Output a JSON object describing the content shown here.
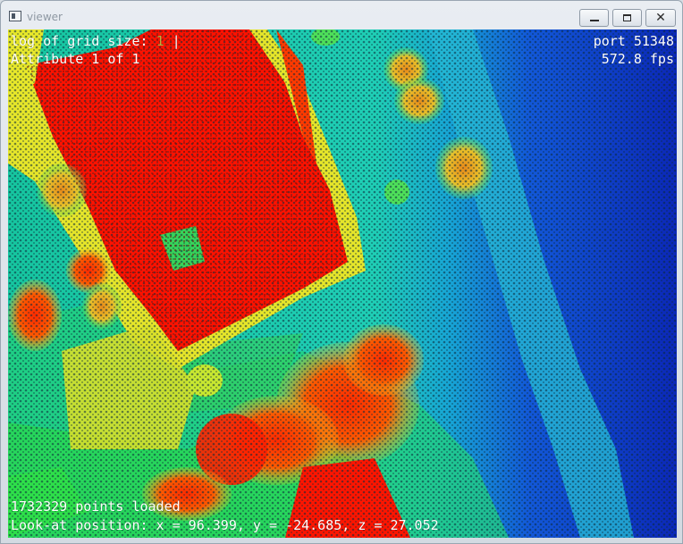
{
  "window": {
    "title": "viewer",
    "controls": {
      "minimize": "minimize",
      "maximize": "maximize",
      "close": "close"
    }
  },
  "hud": {
    "grid_label": "log of grid size: ",
    "grid_value": "1",
    "grid_cursor": " |",
    "attribute": "Attribute 1 of 1",
    "port": "port 51348",
    "fps": "572.8 fps",
    "points_loaded": "1732329 points loaded",
    "look_at": "Look-at position: x = 96.399, y = -24.685, z = 27.052"
  },
  "colors": {
    "low": "#0d2fc4",
    "mid_low": "#1a8fe0",
    "mid": "#18c9a8",
    "mid_high": "#c9e22a",
    "high": "#ff1a00"
  }
}
